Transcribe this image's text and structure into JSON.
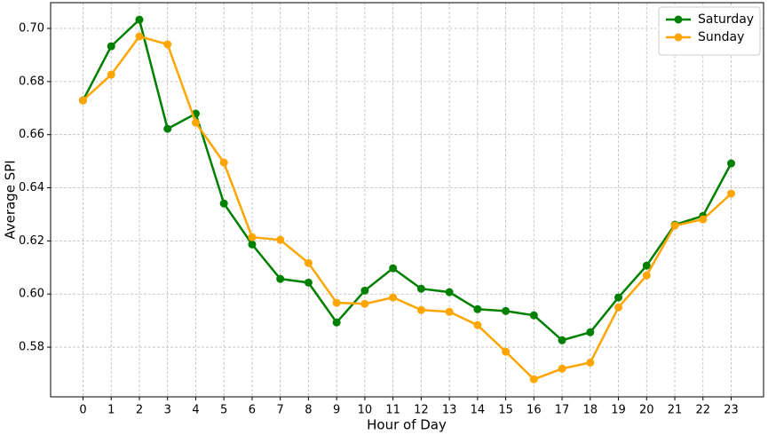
{
  "chart_data": {
    "type": "line",
    "xlabel": "Hour of Day",
    "ylabel": "Average SPI",
    "x": [
      0,
      1,
      2,
      3,
      4,
      5,
      6,
      7,
      8,
      9,
      10,
      11,
      12,
      13,
      14,
      15,
      16,
      17,
      18,
      19,
      20,
      21,
      22,
      23
    ],
    "series": [
      {
        "name": "Saturday",
        "color": "#008000",
        "values": [
          0.6729,
          0.6933,
          0.7033,
          0.6622,
          0.6679,
          0.6341,
          0.6187,
          0.6057,
          0.6043,
          0.5893,
          0.6013,
          0.6097,
          0.602,
          0.6007,
          0.5943,
          0.5936,
          0.592,
          0.5826,
          0.5856,
          0.5987,
          0.6107,
          0.6261,
          0.6294,
          0.6492
        ]
      },
      {
        "name": "Sunday",
        "color": "#ffa500",
        "values": [
          0.6729,
          0.6826,
          0.697,
          0.694,
          0.6645,
          0.6495,
          0.6214,
          0.6204,
          0.6117,
          0.5967,
          0.5963,
          0.5987,
          0.594,
          0.5933,
          0.5883,
          0.5783,
          0.5679,
          0.5719,
          0.5742,
          0.595,
          0.607,
          0.6258,
          0.6281,
          0.6378
        ]
      }
    ],
    "xlim": [
      -1.15,
      24.15
    ],
    "xticks": [
      0,
      1,
      2,
      3,
      4,
      5,
      6,
      7,
      8,
      9,
      10,
      11,
      12,
      13,
      14,
      15,
      16,
      17,
      18,
      19,
      20,
      21,
      22,
      23
    ],
    "ylim": [
      0.5613,
      0.7097
    ],
    "yticks": [
      0.58,
      {
        "value": 0.6,
        "label": "0.60"
      },
      0.62,
      0.64,
      0.66,
      0.68,
      {
        "value": 0.7,
        "label": "0.70"
      }
    ],
    "grid": true,
    "legend": "upper right"
  }
}
